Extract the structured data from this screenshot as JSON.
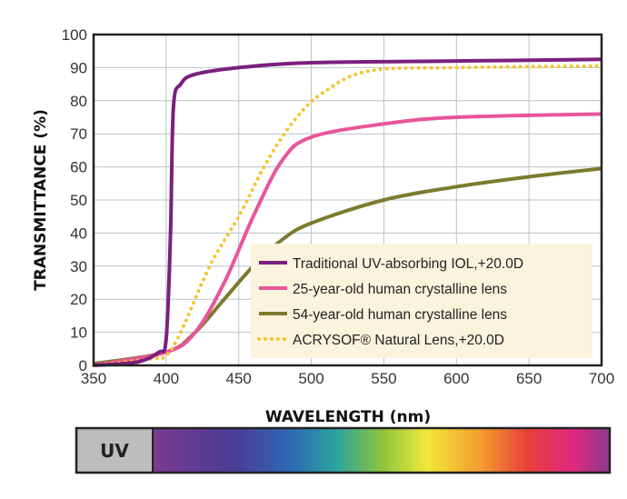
{
  "chart_data": {
    "type": "line",
    "xlabel": "WAVELENGTH (nm)",
    "ylabel": "TRANSMITTANCE (%)",
    "xlim": [
      350,
      700
    ],
    "ylim": [
      0,
      100
    ],
    "xticks": [
      "350",
      "400",
      "450",
      "500",
      "550",
      "600",
      "650",
      "700"
    ],
    "yticks": [
      "0",
      "10",
      "20",
      "30",
      "40",
      "50",
      "60",
      "70",
      "80",
      "90",
      "100"
    ],
    "grid": true,
    "legend_position": "bottom-right",
    "series": [
      {
        "name": "Traditional UV-absorbing IOL,+20.0D",
        "color": "#7b1f7e",
        "style": "solid",
        "x": [
          350,
          380,
          395,
          400,
          403,
          405,
          410,
          420,
          450,
          500,
          600,
          700
        ],
        "y": [
          0,
          1,
          4,
          8,
          40,
          78,
          85,
          88,
          90,
          91.5,
          92,
          92.5
        ]
      },
      {
        "name": "25-year-old human crystalline lens",
        "color": "#e8559a",
        "style": "solid",
        "x": [
          350,
          400,
          420,
          440,
          460,
          480,
          500,
          550,
          600,
          700
        ],
        "y": [
          0,
          4,
          10,
          25,
          45,
          62,
          69,
          73,
          75,
          76
        ]
      },
      {
        "name": "54-year-old human crystalline lens",
        "color": "#7d7a2e",
        "style": "solid",
        "x": [
          350,
          400,
          420,
          440,
          460,
          480,
          500,
          550,
          600,
          650,
          700
        ],
        "y": [
          0.5,
          4,
          10,
          20,
          30,
          38,
          43,
          50,
          54,
          57,
          59.5
        ]
      },
      {
        "name": "ACRYSOF® Natural Lens,+20.0D",
        "color": "#f4c531",
        "style": "dotted",
        "x": [
          350,
          390,
          400,
          410,
          430,
          450,
          470,
          490,
          510,
          540,
          600,
          700
        ],
        "y": [
          0,
          2,
          3,
          10,
          30,
          45,
          62,
          75,
          83,
          89,
          90,
          90.5
        ]
      }
    ]
  },
  "spectrum": {
    "uv_label": "UV"
  }
}
